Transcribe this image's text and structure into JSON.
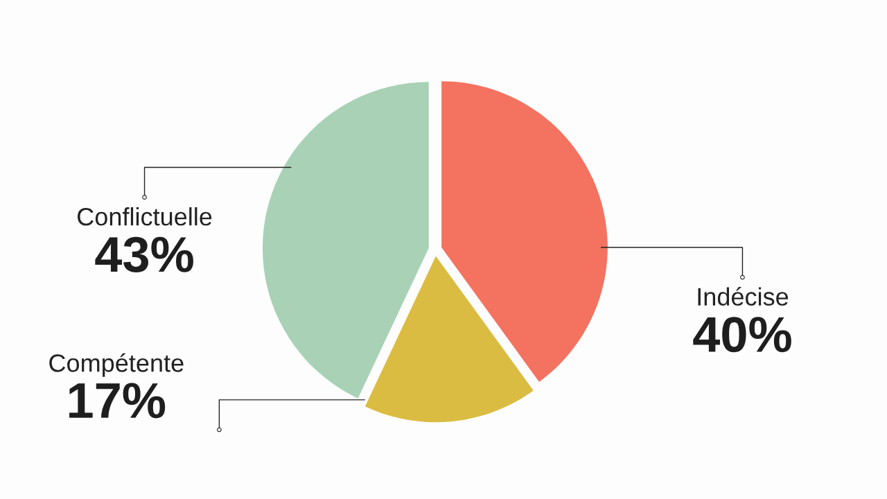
{
  "chart_data": {
    "type": "pie",
    "categories": [
      "Indécise",
      "Compétente",
      "Conflictuelle"
    ],
    "values": [
      40,
      17,
      43
    ],
    "colors": [
      "#f47260",
      "#dbbc42",
      "#a8d1b6"
    ],
    "value_labels": [
      "40%",
      "17%",
      "43%"
    ]
  }
}
